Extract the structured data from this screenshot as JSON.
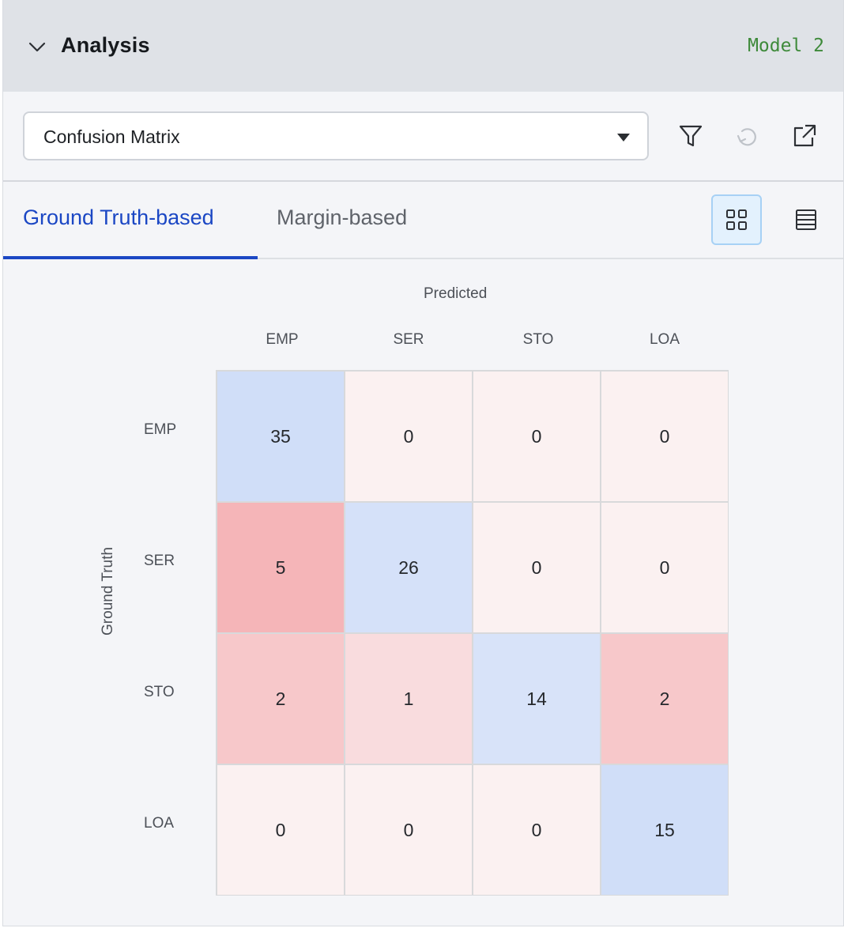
{
  "header": {
    "title": "Analysis",
    "model": "Model 2"
  },
  "toolbar": {
    "select_value": "Confusion Matrix",
    "icons": [
      "filter-icon",
      "undo-icon",
      "open-external-icon"
    ]
  },
  "tabs": [
    {
      "label": "Ground Truth-based",
      "active": true
    },
    {
      "label": "Margin-based",
      "active": false
    }
  ],
  "view_toggle": {
    "grid": "grid-view-icon",
    "list": "list-view-icon",
    "active": "grid"
  },
  "matrix": {
    "predicted_label": "Predicted",
    "ground_truth_label": "Ground Truth",
    "columns": [
      "EMP",
      "SER",
      "STO",
      "LOA"
    ],
    "rows": [
      "EMP",
      "SER",
      "STO",
      "LOA"
    ],
    "values": [
      [
        35,
        0,
        0,
        0
      ],
      [
        5,
        26,
        0,
        0
      ],
      [
        2,
        1,
        14,
        2
      ],
      [
        0,
        0,
        0,
        15
      ]
    ]
  },
  "colors": {
    "accent": "#1b47c4",
    "model_tag": "#3e8a3a"
  }
}
